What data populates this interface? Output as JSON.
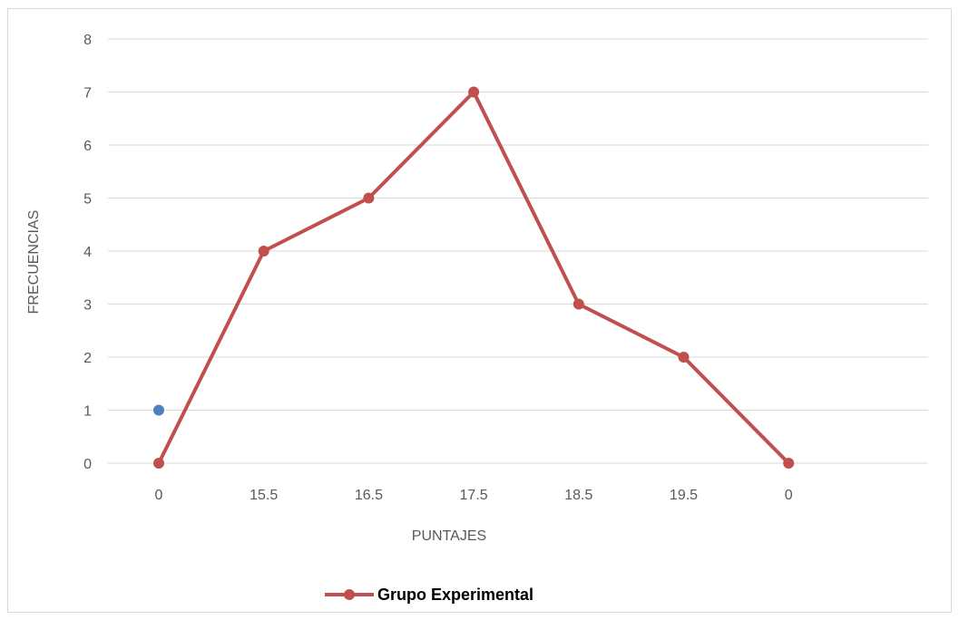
{
  "chart_data": {
    "type": "line",
    "categories": [
      "0",
      "15.5",
      "16.5",
      "17.5",
      "18.5",
      "19.5",
      "0"
    ],
    "series": [
      {
        "name": "Grupo Experimental",
        "values": [
          0,
          4,
          5,
          7,
          3,
          2,
          0
        ],
        "color": "#c0504d",
        "marker": "circle"
      }
    ],
    "extra_points": [
      {
        "category_index": 0,
        "value": 1,
        "color": "#4f81bd"
      }
    ],
    "xlabel": "PUNTAJES",
    "ylabel": "FRECUENCIAS",
    "ylim": [
      0,
      8
    ],
    "yticks": [
      0,
      1,
      2,
      3,
      4,
      5,
      6,
      7,
      8
    ],
    "grid": true,
    "legend_position": "bottom"
  }
}
